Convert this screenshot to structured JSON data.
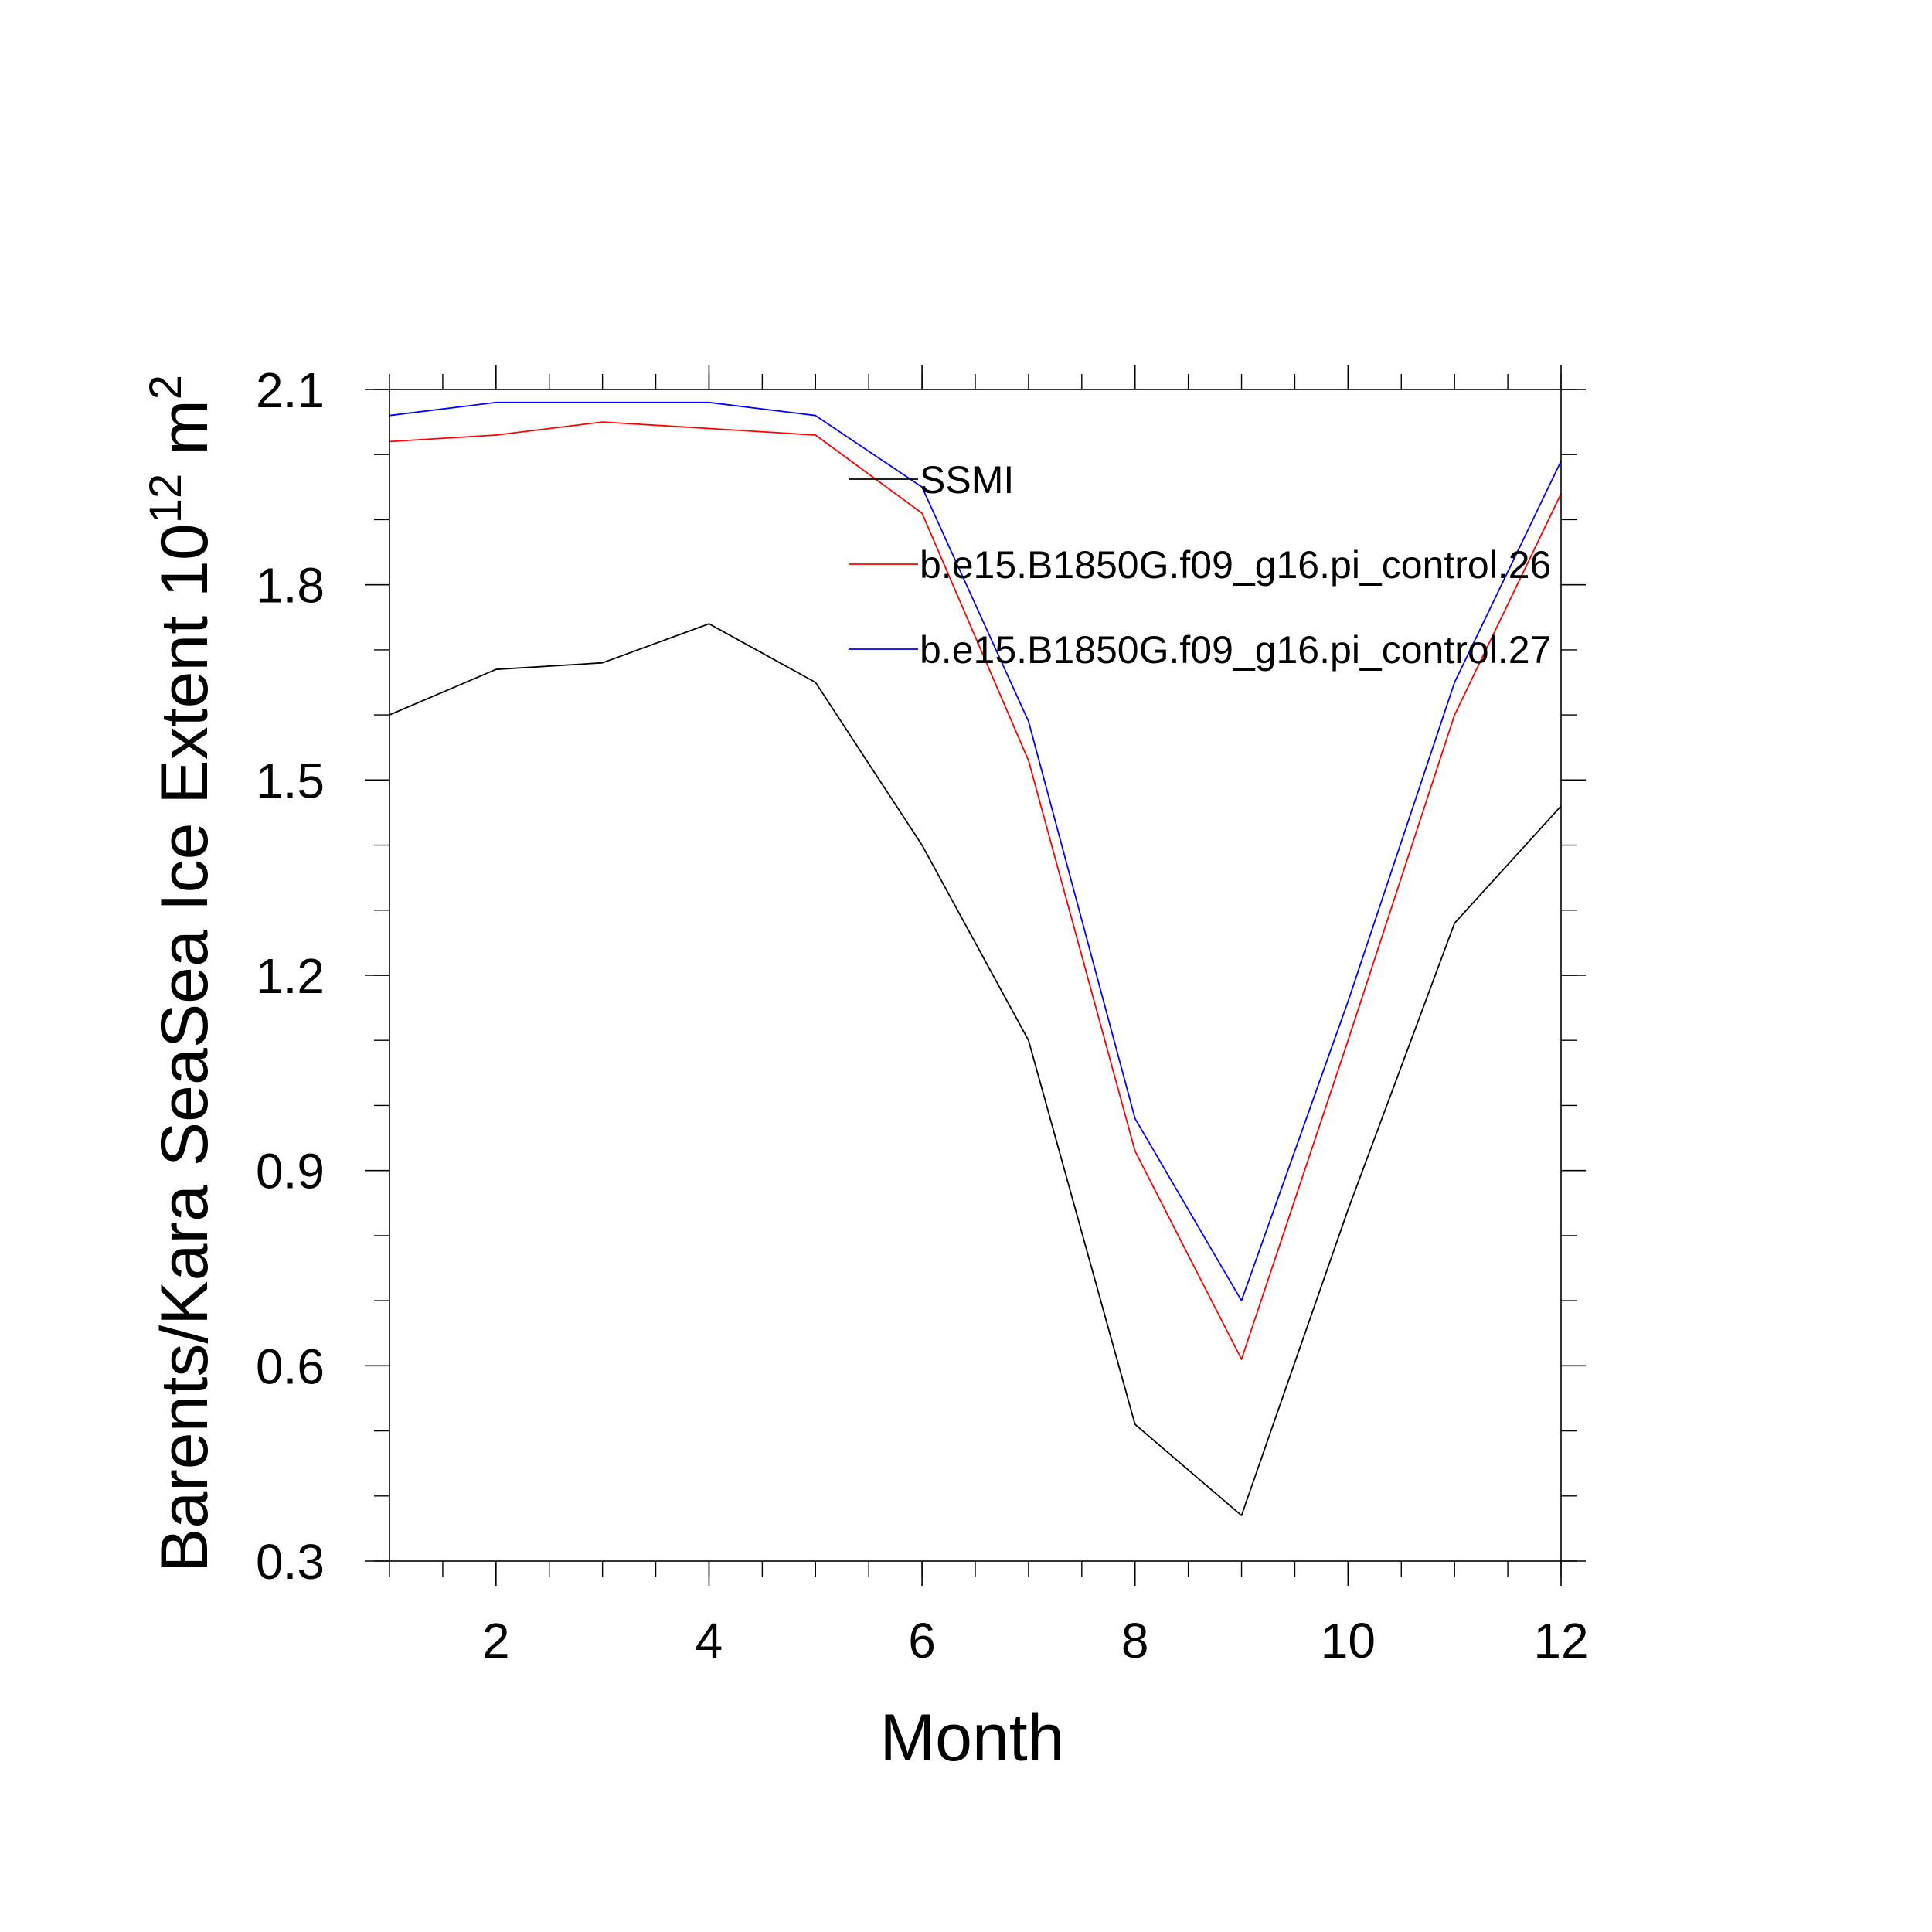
{
  "chart_data": {
    "type": "line",
    "title": "",
    "xlabel": "Month",
    "ylabel": {
      "text": "Barents/Kara SeaSea Ice Extent 10",
      "exponent1": "12",
      "unit": " m",
      "exponent2": "2"
    },
    "xlim": [
      1,
      12
    ],
    "ylim": [
      0.3,
      2.1
    ],
    "x_ticks": [
      2,
      4,
      6,
      8,
      10,
      12
    ],
    "x_minor_step": 0.5,
    "y_ticks": [
      "0.3",
      "0.6",
      "0.9",
      "1.2",
      "1.5",
      "1.8",
      "2.1"
    ],
    "y_minor_step": 0.1,
    "grid": false,
    "legend_position": "top-right inside",
    "x": [
      1,
      2,
      3,
      4,
      5,
      6,
      7,
      8,
      9,
      10,
      11,
      12
    ],
    "series": [
      {
        "name": "SSMI",
        "color": "#000000",
        "values": [
          1.6,
          1.67,
          1.68,
          1.74,
          1.65,
          1.4,
          1.1,
          0.51,
          0.37,
          0.84,
          1.28,
          1.46
        ]
      },
      {
        "name": "b.e15.B1850G.f09_g16.pi_control.26",
        "color": "#ff0000",
        "values": [
          2.02,
          2.03,
          2.05,
          2.04,
          2.03,
          1.91,
          1.53,
          0.93,
          0.61,
          1.1,
          1.6,
          1.94
        ]
      },
      {
        "name": "b.e15.B1850G.f09_g16.pi_control.27",
        "color": "#0000ff",
        "values": [
          2.06,
          2.08,
          2.08,
          2.08,
          2.06,
          1.95,
          1.59,
          0.98,
          0.7,
          1.16,
          1.65,
          1.99
        ]
      }
    ]
  }
}
